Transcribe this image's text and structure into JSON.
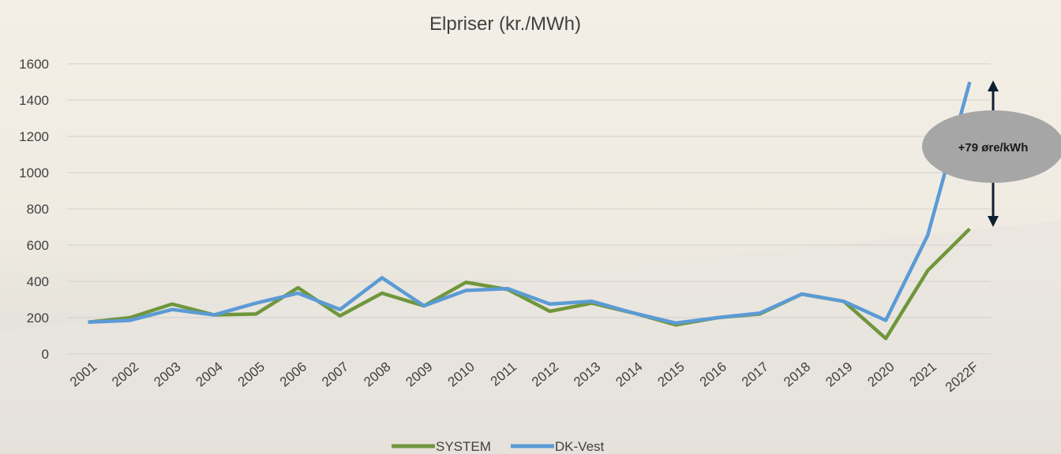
{
  "chart_data": {
    "type": "line",
    "title": "Elpriser (kr./MWh)",
    "categories": [
      "2001",
      "2002",
      "2003",
      "2004",
      "2005",
      "2006",
      "2007",
      "2008",
      "2009",
      "2010",
      "2011",
      "2012",
      "2013",
      "2014",
      "2015",
      "2016",
      "2017",
      "2018",
      "2019",
      "2020",
      "2021",
      "2022F"
    ],
    "series": [
      {
        "name": "SYSTEM",
        "color": "#70963c",
        "values": [
          175,
          200,
          275,
          215,
          220,
          365,
          210,
          335,
          265,
          395,
          355,
          235,
          280,
          225,
          160,
          200,
          220,
          330,
          290,
          85,
          460,
          690
        ]
      },
      {
        "name": "DK-Vest",
        "color": "#5b9bd5",
        "values": [
          175,
          185,
          245,
          215,
          280,
          335,
          245,
          420,
          265,
          350,
          360,
          275,
          290,
          225,
          170,
          200,
          225,
          330,
          290,
          185,
          655,
          1500
        ]
      }
    ],
    "ylim": [
      0,
      1600
    ],
    "yticks": [
      0,
      200,
      400,
      600,
      800,
      1000,
      1200,
      1400,
      1600
    ],
    "grid": true,
    "annotation": "+79 øre/kWh",
    "legend": "bottom"
  }
}
